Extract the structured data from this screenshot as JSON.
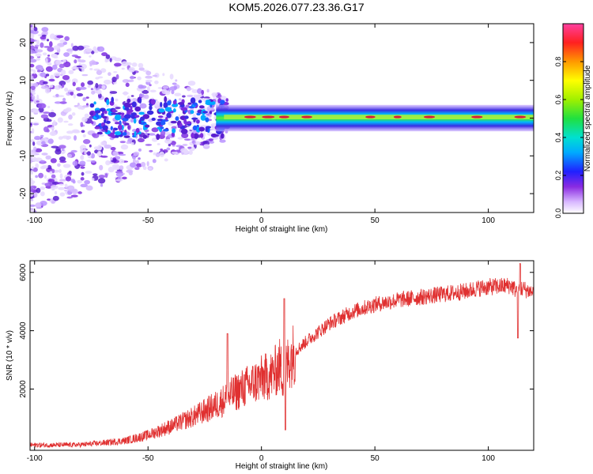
{
  "title": "KOM5.2026.077.23.36.G17",
  "colors": {
    "snr_line": "#e03030",
    "axis": "#000000",
    "spectrum_core": "#d81e3c",
    "spectrum_scatter": "#9a5cf0"
  },
  "colorbar": {
    "label": "Normalized spectral amplitude",
    "ticks": [
      "0.0",
      "0.2",
      "0.4",
      "0.6",
      "0.8"
    ],
    "tick_values": [
      0.0,
      0.2,
      0.4,
      0.6,
      0.8
    ],
    "range": [
      0,
      1
    ]
  },
  "chart_data": [
    {
      "type": "heatmap",
      "name": "spectrogram",
      "xlabel": "Height of straight line (km)",
      "ylabel": "Frequency (Hz)",
      "xlim": [
        -102,
        120
      ],
      "ylim": [
        -25,
        25
      ],
      "xticks": [
        -100,
        -50,
        0,
        50,
        100
      ],
      "xtick_labels": [
        "-100",
        "-50",
        "0",
        "50",
        "100"
      ],
      "yticks": [
        -20,
        -10,
        0,
        10,
        20
      ],
      "ytick_labels": [
        "-20",
        "-10",
        "0",
        "10",
        "20"
      ],
      "description_points": [
        {
          "x": -100,
          "f": 0
        },
        {
          "x": -50,
          "f": 0
        },
        {
          "x": -20,
          "f": 0
        },
        {
          "x": 0,
          "f": 0.5
        },
        {
          "x": 50,
          "f": 0
        },
        {
          "x": 100,
          "f": 0
        },
        {
          "x": 120,
          "f": 0
        }
      ],
      "noise_region_x": [
        -102,
        -20
      ],
      "signal_band_x": [
        -20,
        120
      ],
      "signal_center_hz": 0.3
    },
    {
      "type": "line",
      "name": "snr",
      "xlabel": "Height of straight line (km)",
      "ylabel": "SNR (10 * v/v)",
      "xlim": [
        -102,
        120
      ],
      "ylim": [
        -100,
        6400
      ],
      "xticks": [
        -100,
        -50,
        0,
        50,
        100
      ],
      "xtick_labels": [
        "-100",
        "-50",
        "0",
        "50",
        "100"
      ],
      "yticks": [
        2000,
        4000,
        6000
      ],
      "ytick_labels": [
        "2000",
        "4000",
        "6000"
      ],
      "series": [
        {
          "name": "SNR",
          "x": [
            -102,
            -90,
            -80,
            -70,
            -60,
            -50,
            -40,
            -30,
            -20,
            -15,
            -10,
            -5,
            0,
            5,
            8,
            10,
            12,
            15,
            20,
            30,
            40,
            50,
            60,
            70,
            80,
            90,
            95,
            100,
            105,
            110,
            112,
            115,
            120
          ],
          "values": [
            80,
            80,
            90,
            150,
            230,
            420,
            720,
            1050,
            1450,
            1700,
            1950,
            2150,
            2350,
            2500,
            2800,
            2400,
            3000,
            3300,
            3650,
            4250,
            4650,
            4900,
            5050,
            5150,
            5250,
            5350,
            5450,
            5500,
            5520,
            5550,
            5400,
            5450,
            5300
          ]
        }
      ],
      "spikes": [
        {
          "x": -15,
          "value": 3900
        },
        {
          "x": 10,
          "value": 5100
        },
        {
          "x": 10.5,
          "value": 600
        },
        {
          "x": 113,
          "value": 3750
        },
        {
          "x": 114,
          "value": 6300
        }
      ]
    }
  ]
}
